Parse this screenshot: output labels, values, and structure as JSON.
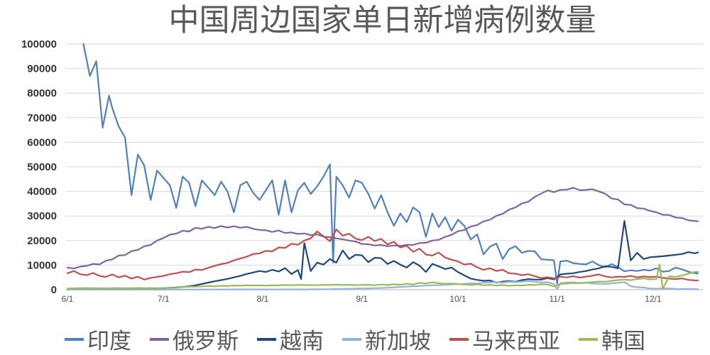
{
  "chart_data": {
    "type": "line",
    "title": "中国周边国家单日新增病例数量",
    "x_axis": {
      "start_label": "6/1",
      "ticks": [
        {
          "label": "6/1",
          "day": 0
        },
        {
          "label": "7/1",
          "day": 30
        },
        {
          "label": "8/1",
          "day": 61
        },
        {
          "label": "9/1",
          "day": 92
        },
        {
          "label": "10/1",
          "day": 122
        },
        {
          "label": "11/1",
          "day": 153
        },
        {
          "label": "12/1",
          "day": 183
        }
      ],
      "total_days": 197
    },
    "y_axis": {
      "min": 0,
      "max": 100000,
      "step": 10000,
      "tick_labels": [
        "0",
        "10000",
        "20000",
        "30000",
        "40000",
        "50000",
        "60000",
        "70000",
        "80000",
        "90000",
        "100000"
      ]
    },
    "x_step_days": 2,
    "series": [
      {
        "id": "india",
        "name": "印度",
        "color": "#4F81BD",
        "values": [
          null,
          null,
          null,
          null,
          null,
          null,
          null,
          74000,
          66500,
          62000,
          38500,
          55000,
          50500,
          36500,
          48500,
          45500,
          42500,
          33300,
          46000,
          43500,
          34000,
          44500,
          41500,
          38500,
          44000,
          40000,
          31500,
          42500,
          44000,
          39500,
          36500,
          40500,
          44500,
          30500,
          44500,
          31500,
          40500,
          43500,
          39000,
          42000,
          46000,
          51000,
          46000,
          42500,
          37500,
          44500,
          43500,
          39000,
          33000,
          38500,
          31500,
          26000,
          31000,
          27500,
          33500,
          31500,
          21500,
          31000,
          25500,
          29500,
          24000,
          28500,
          26000,
          20500,
          22500,
          14400,
          17500,
          18800,
          12500,
          16500,
          17700,
          15000,
          15800,
          15600,
          12400,
          12200,
          12000,
          11500,
          11800,
          10800,
          10500,
          10300,
          11500,
          10000,
          9200,
          10400,
          9200,
          7500,
          7900,
          7600,
          8100,
          7800,
          8700,
          7300,
          7600,
          9000,
          8300,
          7300,
          6700
        ],
        "extra_points": [
          [
            5,
            100000
          ],
          [
            7,
            87000
          ],
          [
            9,
            93000
          ],
          [
            11,
            66000
          ],
          [
            13,
            79000
          ],
          [
            83,
            11000
          ],
          [
            153,
            2500
          ],
          [
            197,
            6600
          ]
        ]
      },
      {
        "id": "russia",
        "name": "俄罗斯",
        "color": "#8064A2",
        "values": [
          9000,
          8600,
          9400,
          9700,
          10500,
          10300,
          11800,
          12300,
          13900,
          14100,
          15700,
          16200,
          17700,
          18200,
          20000,
          21000,
          22400,
          22800,
          24000,
          23700,
          25200,
          24800,
          25600,
          25100,
          25900,
          25300,
          25800,
          25200,
          25600,
          24800,
          24300,
          24200,
          23500,
          24100,
          23100,
          23300,
          22700,
          22900,
          22200,
          22500,
          21600,
          21400,
          20900,
          20500,
          20000,
          19600,
          18600,
          18500,
          18000,
          18200,
          17700,
          18000,
          17800,
          18300,
          18200,
          19000,
          19100,
          20000,
          20300,
          21500,
          22300,
          23800,
          24300,
          25700,
          26300,
          27800,
          28500,
          30100,
          30900,
          32600,
          33500,
          35100,
          35800,
          37800,
          39100,
          40400,
          39700,
          40600,
          40700,
          41500,
          40500,
          40600,
          40900,
          40000,
          39100,
          37100,
          36700,
          34700,
          34500,
          33200,
          33000,
          32100,
          31500,
          30500,
          30400,
          29400,
          29200,
          28200,
          28000
        ],
        "extra_points": [
          [
            197,
            27800
          ]
        ]
      },
      {
        "id": "vietnam",
        "name": "越南",
        "color": "#1F497D",
        "values": [
          150,
          200,
          180,
          250,
          220,
          300,
          280,
          350,
          320,
          380,
          350,
          400,
          450,
          500,
          550,
          600,
          750,
          900,
          1100,
          1400,
          1800,
          2300,
          2900,
          3400,
          3900,
          4400,
          5000,
          5600,
          6400,
          7000,
          7600,
          7200,
          8100,
          7400,
          8800,
          6400,
          8000,
          19000,
          7600,
          11000,
          10200,
          12500,
          11000,
          16000,
          12500,
          14200,
          14000,
          11200,
          13000,
          12800,
          10500,
          11700,
          10200,
          9000,
          11200,
          9800,
          7200,
          10500,
          9500,
          8400,
          9000,
          7200,
          5800,
          4500,
          4000,
          3600,
          3750,
          2900,
          3300,
          3500,
          3200,
          3900,
          4300,
          4100,
          4100,
          4700,
          4200,
          6200,
          6500,
          6700,
          7200,
          7600,
          8200,
          8700,
          9500,
          9300,
          8700,
          28000,
          11900,
          15000,
          12500,
          13200,
          13400,
          13600,
          13900,
          14200,
          14500,
          15300,
          14800
        ],
        "extra_points": [
          [
            73,
            4300
          ],
          [
            197,
            15200
          ]
        ]
      },
      {
        "id": "singapore",
        "name": "新加坡",
        "color": "#95B3D7",
        "values": [
          20,
          28,
          22,
          30,
          25,
          32,
          26,
          34,
          28,
          36,
          30,
          38,
          32,
          40,
          36,
          42,
          45,
          50,
          55,
          60,
          68,
          75,
          82,
          90,
          100,
          95,
          110,
          105,
          120,
          115,
          130,
          95,
          115,
          100,
          125,
          105,
          135,
          115,
          145,
          165,
          185,
          215,
          255,
          305,
          355,
          420,
          480,
          550,
          620,
          700,
          810,
          950,
          1100,
          1250,
          1400,
          1500,
          1650,
          1800,
          1850,
          2000,
          2100,
          2250,
          2400,
          2600,
          2500,
          2800,
          3000,
          3100,
          2900,
          3200,
          3050,
          3300,
          3500,
          3200,
          3000,
          3000,
          2300,
          2600,
          2900,
          3000,
          2700,
          2900,
          2500,
          2400,
          2300,
          2600,
          2800,
          3100,
          1400,
          1000,
          870,
          500,
          400,
          550,
          450,
          350,
          300,
          250
        ],
        "extra_points": [
          [
            153,
            300
          ],
          [
            197,
            230
          ]
        ]
      },
      {
        "id": "malaysia",
        "name": "马来西亚",
        "color": "#C0504D",
        "values": [
          6700,
          7600,
          6300,
          5900,
          6800,
          5600,
          5200,
          6200,
          5000,
          5700,
          4500,
          5300,
          4100,
          4800,
          5200,
          5600,
          6300,
          6700,
          7300,
          7100,
          8200,
          8000,
          8900,
          9700,
          10400,
          10900,
          11900,
          12700,
          13400,
          14500,
          14800,
          15800,
          15600,
          17200,
          17000,
          18700,
          18300,
          20000,
          20900,
          23700,
          21800,
          19700,
          24500,
          22000,
          22800,
          20800,
          20200,
          21500,
          19800,
          20700,
          18400,
          19500,
          17200,
          17900,
          15400,
          16700,
          14300,
          13900,
          15100,
          13100,
          12200,
          11500,
          10200,
          10600,
          9100,
          8100,
          8700,
          7600,
          8100,
          6700,
          6500,
          5900,
          6300,
          5500,
          4700,
          5100,
          4600,
          5300,
          5000,
          5500,
          4900,
          5300,
          5700,
          6200,
          5400,
          5000,
          5300,
          5200,
          5600,
          5000,
          5400,
          5100,
          5300,
          4800,
          4500,
          4300,
          4600,
          4000,
          3800
        ],
        "extra_points": [
          [
            197,
            3760
          ]
        ]
      },
      {
        "id": "southkorea",
        "name": "韩国",
        "color": "#9BBB59",
        "values": [
          460,
          550,
          600,
          680,
          570,
          620,
          540,
          600,
          660,
          590,
          640,
          700,
          610,
          660,
          590,
          700,
          740,
          780,
          1100,
          1200,
          1250,
          1350,
          1500,
          1400,
          1600,
          1500,
          1700,
          1650,
          1800,
          1700,
          1750,
          1650,
          1800,
          1750,
          1900,
          1800,
          2000,
          1850,
          1950,
          1800,
          2000,
          1900,
          2050,
          1900,
          2000,
          1850,
          1950,
          2000,
          1800,
          2100,
          1900,
          2200,
          2000,
          2400,
          2100,
          2800,
          2500,
          3000,
          2600,
          2400,
          2500,
          2300,
          2100,
          1900,
          2200,
          1800,
          2000,
          1700,
          1900,
          1600,
          1800,
          1700,
          2000,
          1900,
          2200,
          2100,
          1300,
          2300,
          2500,
          2700,
          2600,
          2900,
          3100,
          3300,
          3200,
          3600,
          3900,
          4100,
          3900,
          4300,
          4600,
          4200,
          4300,
          null,
          5500,
          5200,
          5800,
          6500,
          7200
        ],
        "extra_points": [
          [
            185,
            10300
          ],
          [
            186,
            350
          ],
          [
            197,
            7300
          ]
        ]
      }
    ],
    "legend": {
      "position": "bottom",
      "labels": [
        "印度",
        "俄罗斯",
        "越南",
        "新加坡",
        "马来西亚",
        "韩国"
      ]
    }
  },
  "styles": {
    "background": "#FFFFFF",
    "grid_color": "#D9D9D9",
    "axis_color": "#BFBFBF",
    "title_color": "#595959",
    "y_label_color": "#333333",
    "x_label_color": "#4d4d4d",
    "legend_text_color": "#595959"
  }
}
